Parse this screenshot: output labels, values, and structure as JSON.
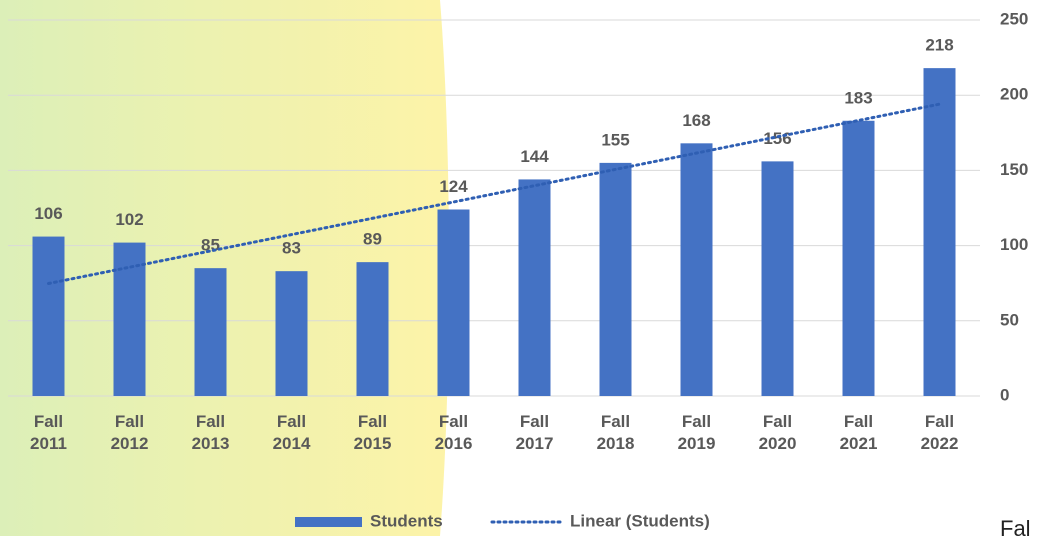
{
  "chart_data": {
    "type": "bar",
    "categories": [
      "Fall 2011",
      "Fall 2012",
      "Fall 2013",
      "Fall 2014",
      "Fall 2015",
      "Fall 2016",
      "Fall 2017",
      "Fall 2018",
      "Fall 2019",
      "Fall 2020",
      "Fall 2021",
      "Fall 2022"
    ],
    "series": [
      {
        "name": "Students",
        "color": "#4472c4",
        "values": [
          106,
          102,
          85,
          83,
          89,
          124,
          144,
          155,
          168,
          156,
          183,
          218
        ]
      }
    ],
    "trendline": {
      "name": "Linear (Students)",
      "kind": "linear",
      "color": "#2f5fb3"
    },
    "ylim": [
      0,
      250
    ],
    "yticks": [
      0,
      50,
      100,
      150,
      200,
      250
    ],
    "grid": true,
    "y_axis_side": "right",
    "legend": "bottom"
  },
  "fragment_text": "Fal"
}
